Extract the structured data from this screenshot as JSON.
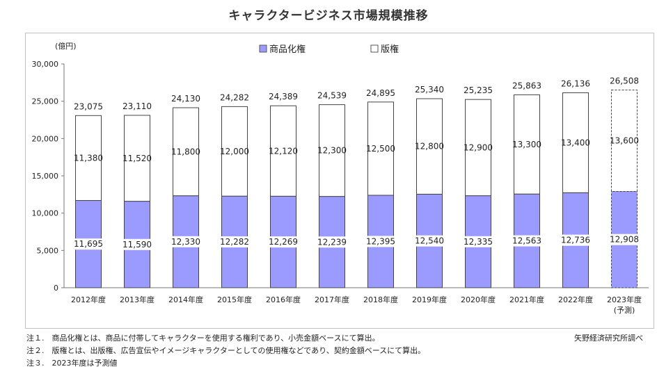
{
  "title": "キャラクタービジネス市場規模推移",
  "chart_data": {
    "type": "bar",
    "stacked": true,
    "unit_label": "(億円)",
    "categories": [
      "2012年度",
      "2013年度",
      "2014年度",
      "2015年度",
      "2016年度",
      "2017年度",
      "2018年度",
      "2019年度",
      "2020年度",
      "2021年度",
      "2022年度",
      "2023年度"
    ],
    "category_sublabels": [
      "",
      "",
      "",
      "",
      "",
      "",
      "",
      "",
      "",
      "",
      "",
      "(予測)"
    ],
    "series": [
      {
        "name": "商品化権",
        "color": "#9a9aff",
        "values": [
          11695,
          11590,
          12330,
          12282,
          12269,
          12239,
          12395,
          12540,
          12335,
          12563,
          12736,
          12908
        ]
      },
      {
        "name": "版権",
        "color": "#ffffff",
        "values": [
          11380,
          11520,
          11800,
          12000,
          12120,
          12300,
          12500,
          12800,
          12900,
          13300,
          13400,
          13600
        ]
      }
    ],
    "totals": [
      23075,
      23110,
      24130,
      24282,
      24389,
      24539,
      24895,
      25340,
      25235,
      25863,
      26136,
      26508
    ],
    "forecast_index": 11,
    "ylim": [
      0,
      30000
    ],
    "yticks": [
      0,
      5000,
      10000,
      15000,
      20000,
      25000,
      30000
    ],
    "ytick_labels": [
      "0",
      "5,000",
      "10,000",
      "15,000",
      "20,000",
      "25,000",
      "30,000"
    ],
    "legend_position": "top-center",
    "grid": false
  },
  "notes": [
    "注１.　商品化権とは、商品に付帯してキャラクターを使用する権利であり、小売金額ベースにて算出。",
    "注２.　版権とは、出版権、広告宣伝やイメージキャラクターとしての使用権などであり、契約金額ベースにて算出。",
    "注３.　2023年度は予測値"
  ],
  "source": "矢野経済研究所調べ"
}
